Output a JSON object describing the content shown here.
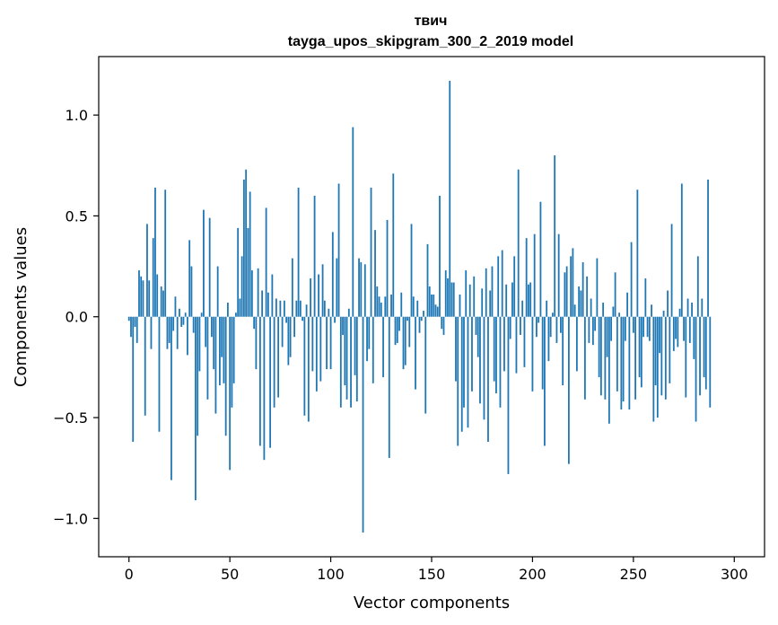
{
  "chart_data": {
    "type": "bar",
    "title": "твич",
    "subtitle": "tayga_upos_skipgram_300_2_2019 model",
    "xlabel": "Vector components",
    "ylabel": "Components values",
    "xlim": [
      -15,
      315
    ],
    "ylim": [
      -1.19,
      1.29
    ],
    "x_ticks": [
      0,
      50,
      100,
      150,
      200,
      250,
      300
    ],
    "x_tick_labels": [
      "0",
      "50",
      "100",
      "150",
      "200",
      "250",
      "300"
    ],
    "y_ticks": [
      -1.0,
      -0.5,
      0.0,
      0.5,
      1.0
    ],
    "y_tick_labels": [
      "−1.0",
      "−0.5",
      "0.0",
      "0.5",
      "1.0"
    ],
    "bar_color": "#1f77b4",
    "grid": false,
    "values": [
      -0.02,
      -0.1,
      -0.62,
      -0.05,
      -0.13,
      0.23,
      0.2,
      0.18,
      -0.49,
      0.46,
      0.18,
      -0.16,
      0.39,
      0.64,
      0.21,
      -0.57,
      0.15,
      0.13,
      0.63,
      -0.16,
      -0.13,
      -0.81,
      -0.07,
      0.1,
      -0.16,
      0.04,
      -0.05,
      -0.04,
      0.02,
      -0.19,
      0.38,
      0.25,
      -0.08,
      -0.91,
      -0.59,
      -0.27,
      0.02,
      0.53,
      -0.15,
      -0.41,
      0.49,
      -0.1,
      -0.26,
      -0.48,
      0.25,
      -0.34,
      -0.2,
      -0.33,
      -0.59,
      0.07,
      -0.76,
      -0.45,
      -0.33,
      0.02,
      0.44,
      0.09,
      0.3,
      0.68,
      0.73,
      0.44,
      0.62,
      0.23,
      -0.06,
      -0.26,
      0.24,
      -0.64,
      0.13,
      -0.71,
      0.54,
      0.12,
      -0.65,
      0.21,
      -0.45,
      0.09,
      -0.4,
      0.08,
      -0.15,
      0.08,
      -0.03,
      -0.24,
      -0.2,
      0.29,
      -0.1,
      0.08,
      0.64,
      0.08,
      -0.02,
      -0.49,
      0.06,
      -0.52,
      0.19,
      -0.27,
      0.6,
      -0.37,
      0.21,
      -0.32,
      0.26,
      0.08,
      -0.26,
      0.04,
      -0.26,
      0.42,
      -0.03,
      0.29,
      0.66,
      -0.45,
      -0.09,
      -0.34,
      -0.41,
      0.04,
      -0.45,
      0.94,
      -0.29,
      -0.42,
      0.29,
      0.27,
      -1.07,
      0.26,
      -0.22,
      -0.16,
      0.64,
      -0.33,
      0.43,
      0.15,
      0.1,
      0.07,
      -0.3,
      0.1,
      0.48,
      -0.7,
      0.11,
      0.71,
      -0.14,
      -0.13,
      -0.07,
      0.12,
      -0.26,
      -0.24,
      -0.02,
      -0.15,
      0.46,
      0.1,
      -0.36,
      0.08,
      -0.08,
      -0.02,
      0.03,
      -0.48,
      0.36,
      0.15,
      0.11,
      0.11,
      0.06,
      0.05,
      0.6,
      -0.06,
      -0.09,
      0.23,
      0.19,
      1.17,
      0.17,
      0.17,
      -0.32,
      -0.64,
      0.11,
      -0.57,
      -0.45,
      0.23,
      -0.55,
      0.16,
      -0.37,
      0.2,
      -0.09,
      -0.2,
      -0.43,
      0.14,
      -0.51,
      0.24,
      -0.62,
      0.13,
      0.25,
      -0.32,
      -0.38,
      0.3,
      -0.45,
      0.33,
      -0.27,
      0.16,
      -0.78,
      -0.11,
      0.17,
      0.3,
      -0.28,
      0.73,
      -0.09,
      0.08,
      -0.25,
      0.39,
      0.16,
      0.17,
      -0.37,
      0.41,
      -0.1,
      -0.03,
      0.57,
      -0.36,
      -0.64,
      0.08,
      -0.22,
      -0.1,
      0.02,
      0.8,
      -0.13,
      0.41,
      -0.08,
      -0.34,
      0.22,
      0.25,
      -0.73,
      0.3,
      0.34,
      0.06,
      -0.27,
      0.15,
      0.13,
      0.27,
      -0.41,
      0.2,
      -0.13,
      0.09,
      -0.14,
      -0.07,
      0.29,
      -0.3,
      -0.39,
      0.07,
      -0.41,
      -0.2,
      -0.53,
      -0.12,
      0.05,
      0.22,
      -0.37,
      0.02,
      -0.46,
      -0.42,
      -0.12,
      0.12,
      -0.46,
      0.37,
      -0.08,
      -0.41,
      0.63,
      -0.3,
      -0.35,
      -0.1,
      0.19,
      -0.1,
      -0.12,
      0.06,
      -0.52,
      -0.34,
      -0.5,
      -0.18,
      -0.39,
      0.03,
      -0.41,
      0.13,
      -0.33,
      0.46,
      -0.17,
      -0.11,
      -0.15,
      0.04,
      0.66,
      -0.12,
      -0.4,
      0.09,
      -0.13,
      0.07,
      -0.21,
      -0.52,
      0.3,
      -0.39,
      0.09,
      -0.3,
      -0.36,
      0.68,
      -0.45
    ]
  }
}
